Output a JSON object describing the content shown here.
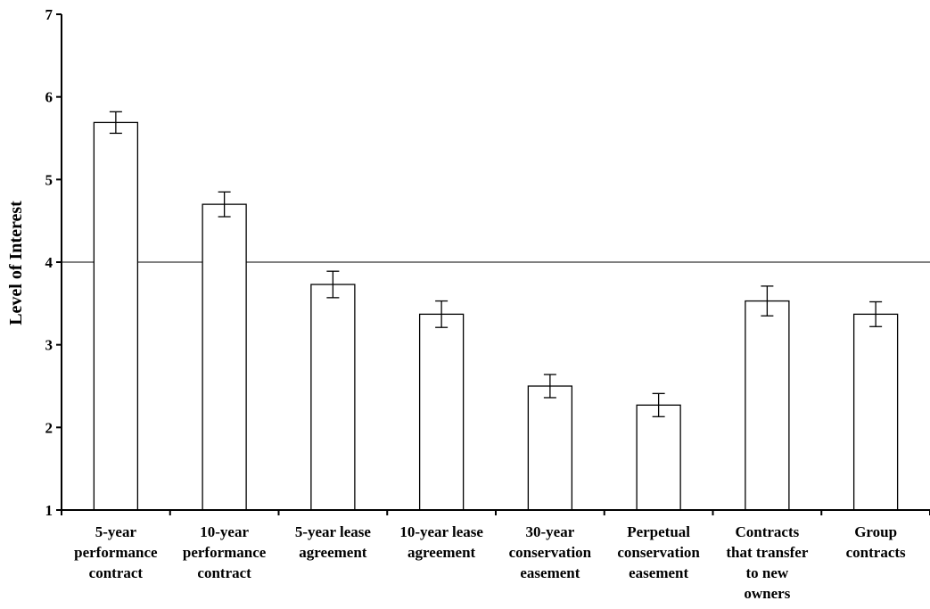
{
  "chart_data": {
    "type": "bar",
    "title": "",
    "xlabel": "",
    "ylabel": "Level of Interest",
    "ylim": [
      1,
      7
    ],
    "yticks": [
      "1",
      "2",
      "3",
      "4",
      "5",
      "6",
      "7"
    ],
    "reference_line": 4,
    "grid": false,
    "categories": [
      [
        "5-year",
        "performance",
        "contract"
      ],
      [
        "10-year",
        "performance",
        "contract"
      ],
      [
        "5-year lease",
        "agreement"
      ],
      [
        "10-year lease",
        "agreement"
      ],
      [
        "30-year",
        "conservation",
        "easement"
      ],
      [
        "Perpetual",
        "conservation",
        "easement"
      ],
      [
        "Contracts",
        "that transfer",
        "to new",
        "owners"
      ],
      [
        "Group",
        "contracts"
      ]
    ],
    "values": [
      5.69,
      4.7,
      3.73,
      3.37,
      2.5,
      2.27,
      3.53,
      3.37
    ],
    "errors": [
      0.13,
      0.15,
      0.16,
      0.16,
      0.14,
      0.14,
      0.18,
      0.15
    ],
    "colors": {
      "bar_fill": "#ffffff",
      "stroke": "#000000"
    }
  }
}
